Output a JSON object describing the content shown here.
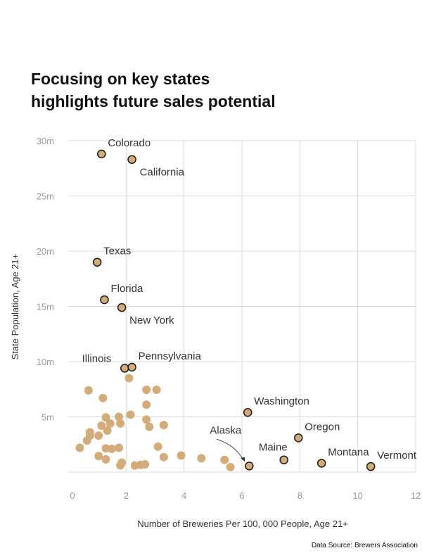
{
  "header": {
    "title_line1": "Focusing on key states",
    "title_line2": "highlights future sales potential"
  },
  "footer": {
    "source": "Data Source: Brewers Association"
  },
  "colors": {
    "point_fill": "#d4ac7a",
    "point_stroke_labeled": "#1a1a1a",
    "grid": "#d9d9d9",
    "arrow": "#333333"
  },
  "chart_data": {
    "type": "scatter",
    "title": "",
    "xlabel": "Number of Breweries Per 100, 000 People, Age 21+",
    "ylabel": "State Population, Age 21+",
    "xlim": [
      0,
      12
    ],
    "ylim": [
      0,
      30
    ],
    "x_ticks": [
      0,
      2,
      4,
      6,
      8,
      10,
      12
    ],
    "y_ticks": [
      {
        "value": 5,
        "label": "5m"
      },
      {
        "value": 10,
        "label": "10m"
      },
      {
        "value": 15,
        "label": "15m"
      },
      {
        "value": 20,
        "label": "20m"
      },
      {
        "value": 25,
        "label": "25m"
      },
      {
        "value": 30,
        "label": "30m"
      }
    ],
    "grid": true,
    "labeled_points": [
      {
        "name": "Colorado",
        "x": 1.15,
        "y": 28.8,
        "label_pos": "upper-right"
      },
      {
        "name": "California",
        "x": 2.2,
        "y": 28.3,
        "label_pos": "lower-right"
      },
      {
        "name": "Texas",
        "x": 1.0,
        "y": 19.0,
        "label_pos": "upper-right"
      },
      {
        "name": "Florida",
        "x": 1.25,
        "y": 15.6,
        "label_pos": "upper-right"
      },
      {
        "name": "New York",
        "x": 1.85,
        "y": 14.9,
        "label_pos": "lower-right"
      },
      {
        "name": "Illinois",
        "x": 1.95,
        "y": 9.4,
        "label_pos": "upper-left"
      },
      {
        "name": "Pennsylvania",
        "x": 2.2,
        "y": 9.5,
        "label_pos": "upper-right"
      },
      {
        "name": "Washington",
        "x": 6.2,
        "y": 5.4,
        "label_pos": "upper-right"
      },
      {
        "name": "Oregon",
        "x": 7.95,
        "y": 3.1,
        "label_pos": "upper-right"
      },
      {
        "name": "Alaska",
        "x": 6.25,
        "y": 0.55,
        "label_pos": "arrow"
      },
      {
        "name": "Maine",
        "x": 7.45,
        "y": 1.1,
        "label_pos": "upper-left"
      },
      {
        "name": "Montana",
        "x": 8.75,
        "y": 0.8,
        "label_pos": "upper-right"
      },
      {
        "name": "Vermont",
        "x": 10.45,
        "y": 0.5,
        "label_pos": "upper-right"
      }
    ],
    "other_points": [
      {
        "x": 0.7,
        "y": 7.4
      },
      {
        "x": 1.2,
        "y": 6.7
      },
      {
        "x": 2.7,
        "y": 7.45
      },
      {
        "x": 3.05,
        "y": 7.45
      },
      {
        "x": 2.1,
        "y": 8.5
      },
      {
        "x": 2.7,
        "y": 6.1
      },
      {
        "x": 2.15,
        "y": 5.2
      },
      {
        "x": 1.3,
        "y": 4.95
      },
      {
        "x": 1.75,
        "y": 5.0
      },
      {
        "x": 1.45,
        "y": 4.4
      },
      {
        "x": 1.8,
        "y": 4.4
      },
      {
        "x": 2.7,
        "y": 4.75
      },
      {
        "x": 2.8,
        "y": 4.1
      },
      {
        "x": 3.3,
        "y": 4.25
      },
      {
        "x": 1.15,
        "y": 4.2
      },
      {
        "x": 1.35,
        "y": 3.75
      },
      {
        "x": 0.75,
        "y": 3.6
      },
      {
        "x": 0.75,
        "y": 3.3
      },
      {
        "x": 1.05,
        "y": 3.3
      },
      {
        "x": 0.65,
        "y": 2.85
      },
      {
        "x": 0.4,
        "y": 2.2
      },
      {
        "x": 1.3,
        "y": 2.15
      },
      {
        "x": 1.5,
        "y": 2.1
      },
      {
        "x": 1.75,
        "y": 2.2
      },
      {
        "x": 3.1,
        "y": 2.3
      },
      {
        "x": 1.05,
        "y": 1.45
      },
      {
        "x": 1.3,
        "y": 1.15
      },
      {
        "x": 3.3,
        "y": 1.35
      },
      {
        "x": 3.9,
        "y": 1.5
      },
      {
        "x": 4.6,
        "y": 1.25
      },
      {
        "x": 5.4,
        "y": 1.1
      },
      {
        "x": 1.85,
        "y": 0.85
      },
      {
        "x": 1.8,
        "y": 0.6
      },
      {
        "x": 2.3,
        "y": 0.6
      },
      {
        "x": 2.5,
        "y": 0.65
      },
      {
        "x": 2.65,
        "y": 0.7
      },
      {
        "x": 5.6,
        "y": 0.45
      }
    ]
  }
}
